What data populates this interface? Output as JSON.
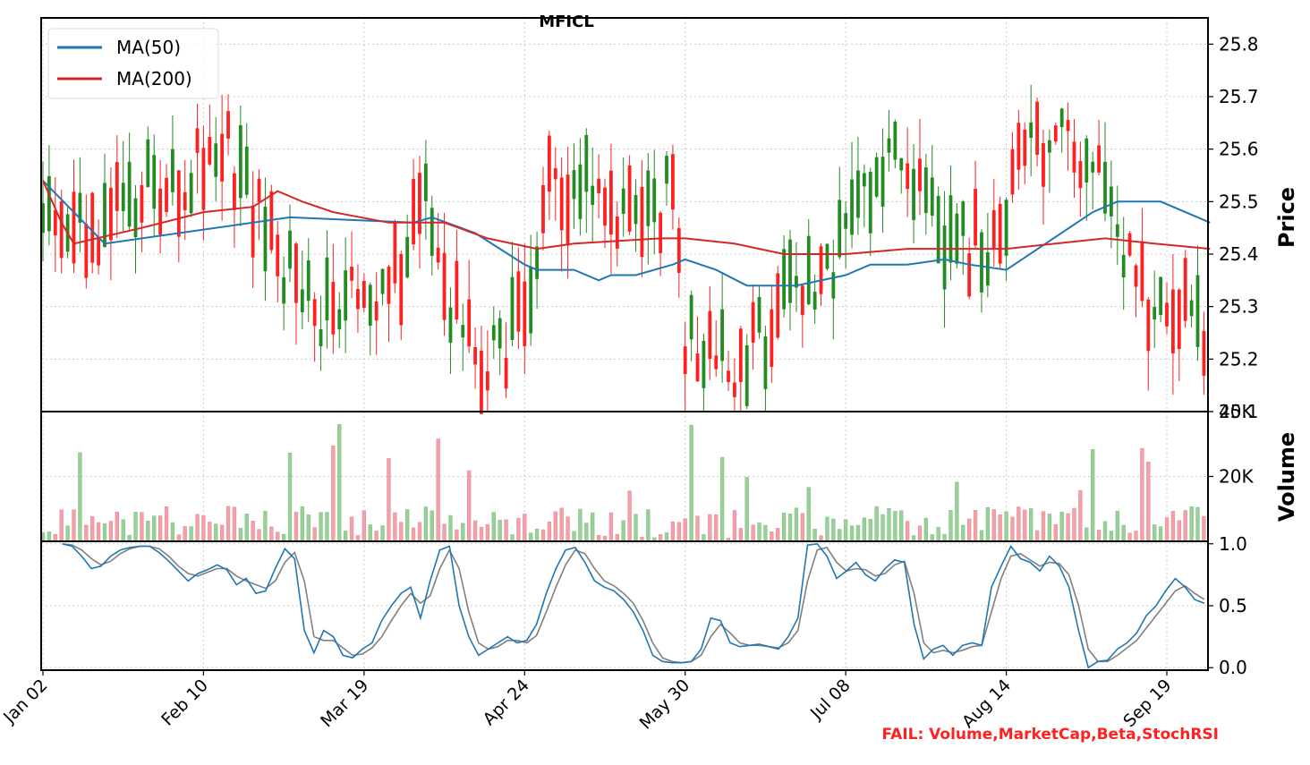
{
  "chart_data": {
    "type": "candlestick",
    "title": "MFICL",
    "x_tick_labels": [
      "Jan 02",
      "Feb 10",
      "Mar 19",
      "Apr 24",
      "May 30",
      "Jul 08",
      "Aug 14",
      "Sep 19"
    ],
    "x_tick_index": [
      0,
      26,
      52,
      78,
      104,
      130,
      156,
      182
    ],
    "bar_count": 189,
    "price_panel": {
      "ylabel": "Price",
      "ylim": [
        25.1,
        25.85
      ],
      "yticks": [
        "25.1",
        "25.2",
        "25.3",
        "25.4",
        "25.5",
        "25.6",
        "25.7",
        "25.8"
      ],
      "ytick_values": [
        25.1,
        25.2,
        25.3,
        25.4,
        25.5,
        25.6,
        25.7,
        25.8
      ],
      "legend": [
        {
          "name": "MA(50)",
          "color": "#1f77b4"
        },
        {
          "name": "MA(200)",
          "color": "#d62728"
        }
      ],
      "legend_position": "upper-left",
      "ma50": [
        [
          0,
          25.54
        ],
        [
          10,
          25.42
        ],
        [
          40,
          25.47
        ],
        [
          60,
          25.46
        ],
        [
          63,
          25.47
        ],
        [
          70,
          25.44
        ],
        [
          78,
          25.38
        ],
        [
          80,
          25.37
        ],
        [
          86,
          25.37
        ],
        [
          90,
          25.35
        ],
        [
          92,
          25.36
        ],
        [
          96,
          25.36
        ],
        [
          102,
          25.38
        ],
        [
          104,
          25.39
        ],
        [
          109,
          25.37
        ],
        [
          114,
          25.34
        ],
        [
          122,
          25.34
        ],
        [
          130,
          25.36
        ],
        [
          134,
          25.38
        ],
        [
          140,
          25.38
        ],
        [
          146,
          25.39
        ],
        [
          150,
          25.38
        ],
        [
          156,
          25.37
        ],
        [
          170,
          25.48
        ],
        [
          174,
          25.5
        ],
        [
          181,
          25.5
        ],
        [
          189,
          25.46
        ]
      ],
      "ma200": [
        [
          0,
          25.54
        ],
        [
          3,
          25.46
        ],
        [
          5,
          25.42
        ],
        [
          16,
          25.45
        ],
        [
          26,
          25.48
        ],
        [
          34,
          25.49
        ],
        [
          38,
          25.52
        ],
        [
          42,
          25.5
        ],
        [
          47,
          25.48
        ],
        [
          56,
          25.46
        ],
        [
          65,
          25.46
        ],
        [
          72,
          25.43
        ],
        [
          80,
          25.41
        ],
        [
          86,
          25.42
        ],
        [
          100,
          25.43
        ],
        [
          104,
          25.43
        ],
        [
          112,
          25.42
        ],
        [
          120,
          25.4
        ],
        [
          130,
          25.4
        ],
        [
          140,
          25.41
        ],
        [
          156,
          25.41
        ],
        [
          172,
          25.43
        ],
        [
          180,
          25.42
        ],
        [
          189,
          25.41
        ]
      ]
    },
    "volume_panel": {
      "ylabel": "Volume",
      "ylim": [
        0,
        40000
      ],
      "yticks": [
        "20K",
        "40K"
      ],
      "ytick_values": [
        20000,
        40000
      ]
    },
    "stochrsi_panel": {
      "ylim": [
        -0.02,
        1.02
      ],
      "yticks": [
        "0.0",
        "0.5",
        "1.0"
      ],
      "ytick_values": [
        0.0,
        0.5,
        1.0
      ],
      "k_color": "#1f77b4",
      "d_color": "#808080",
      "k": [
        [
          4,
          1.0
        ],
        [
          6,
          0.98
        ],
        [
          8,
          0.9
        ],
        [
          9,
          0.85
        ],
        [
          10,
          0.8
        ],
        [
          12,
          0.82
        ],
        [
          14,
          0.9
        ],
        [
          16,
          0.95
        ],
        [
          18,
          0.97
        ],
        [
          20,
          0.98
        ],
        [
          22,
          0.98
        ],
        [
          24,
          0.93
        ],
        [
          26,
          0.86
        ],
        [
          28,
          0.78
        ],
        [
          30,
          0.7
        ],
        [
          32,
          0.76
        ],
        [
          34,
          0.79
        ],
        [
          36,
          0.83
        ],
        [
          38,
          0.79
        ],
        [
          40,
          0.67
        ],
        [
          42,
          0.72
        ],
        [
          44,
          0.6
        ],
        [
          46,
          0.62
        ],
        [
          48,
          0.8
        ],
        [
          50,
          0.96
        ],
        [
          52,
          0.88
        ],
        [
          54,
          0.3
        ],
        [
          56,
          0.12
        ],
        [
          58,
          0.3
        ],
        [
          60,
          0.25
        ],
        [
          62,
          0.1
        ],
        [
          64,
          0.08
        ],
        [
          66,
          0.15
        ],
        [
          68,
          0.2
        ],
        [
          70,
          0.38
        ],
        [
          72,
          0.5
        ],
        [
          74,
          0.6
        ],
        [
          76,
          0.65
        ],
        [
          78,
          0.4
        ],
        [
          80,
          0.7
        ],
        [
          82,
          0.95
        ],
        [
          84,
          0.98
        ],
        [
          86,
          0.5
        ],
        [
          88,
          0.25
        ],
        [
          90,
          0.1
        ],
        [
          92,
          0.15
        ],
        [
          94,
          0.2
        ],
        [
          96,
          0.25
        ],
        [
          98,
          0.2
        ],
        [
          100,
          0.22
        ],
        [
          102,
          0.35
        ],
        [
          104,
          0.6
        ],
        [
          106,
          0.8
        ],
        [
          108,
          0.95
        ],
        [
          110,
          0.97
        ],
        [
          112,
          0.85
        ],
        [
          114,
          0.7
        ],
        [
          116,
          0.65
        ],
        [
          118,
          0.62
        ],
        [
          120,
          0.55
        ],
        [
          122,
          0.45
        ],
        [
          124,
          0.3
        ],
        [
          126,
          0.1
        ],
        [
          128,
          0.05
        ],
        [
          130,
          0.04
        ],
        [
          132,
          0.04
        ],
        [
          134,
          0.05
        ],
        [
          136,
          0.15
        ],
        [
          138,
          0.4
        ],
        [
          140,
          0.38
        ],
        [
          142,
          0.2
        ],
        [
          144,
          0.17
        ],
        [
          146,
          0.18
        ],
        [
          148,
          0.19
        ],
        [
          150,
          0.17
        ],
        [
          152,
          0.15
        ],
        [
          154,
          0.25
        ],
        [
          156,
          0.4
        ],
        [
          158,
          0.99
        ],
        [
          160,
          1.0
        ],
        [
          162,
          0.9
        ],
        [
          164,
          0.72
        ],
        [
          166,
          0.78
        ],
        [
          168,
          0.85
        ],
        [
          170,
          0.75
        ],
        [
          172,
          0.7
        ],
        [
          174,
          0.8
        ],
        [
          176,
          0.87
        ],
        [
          178,
          0.85
        ],
        [
          180,
          0.35
        ],
        [
          182,
          0.07
        ],
        [
          184,
          0.15
        ],
        [
          186,
          0.18
        ],
        [
          188,
          0.1
        ],
        [
          190,
          0.18
        ],
        [
          192,
          0.2
        ],
        [
          194,
          0.18
        ],
        [
          196,
          0.65
        ],
        [
          198,
          0.82
        ],
        [
          200,
          0.98
        ],
        [
          202,
          0.88
        ],
        [
          204,
          0.85
        ],
        [
          206,
          0.78
        ],
        [
          208,
          0.9
        ],
        [
          210,
          0.82
        ],
        [
          212,
          0.65
        ],
        [
          214,
          0.3
        ],
        [
          216,
          0.0
        ],
        [
          218,
          0.05
        ],
        [
          220,
          0.06
        ],
        [
          222,
          0.15
        ],
        [
          224,
          0.2
        ],
        [
          226,
          0.28
        ],
        [
          228,
          0.42
        ],
        [
          230,
          0.5
        ],
        [
          232,
          0.62
        ],
        [
          234,
          0.72
        ],
        [
          236,
          0.65
        ],
        [
          238,
          0.55
        ],
        [
          240,
          0.52
        ]
      ],
      "d": [
        [
          4,
          1.0
        ],
        [
          6,
          0.99
        ],
        [
          8,
          0.95
        ],
        [
          10,
          0.88
        ],
        [
          12,
          0.83
        ],
        [
          14,
          0.86
        ],
        [
          16,
          0.92
        ],
        [
          18,
          0.96
        ],
        [
          20,
          0.98
        ],
        [
          22,
          0.98
        ],
        [
          24,
          0.96
        ],
        [
          26,
          0.9
        ],
        [
          28,
          0.82
        ],
        [
          30,
          0.76
        ],
        [
          32,
          0.74
        ],
        [
          34,
          0.77
        ],
        [
          36,
          0.8
        ],
        [
          38,
          0.8
        ],
        [
          40,
          0.74
        ],
        [
          42,
          0.7
        ],
        [
          44,
          0.67
        ],
        [
          46,
          0.64
        ],
        [
          48,
          0.7
        ],
        [
          50,
          0.85
        ],
        [
          52,
          0.93
        ],
        [
          54,
          0.7
        ],
        [
          56,
          0.25
        ],
        [
          58,
          0.22
        ],
        [
          60,
          0.22
        ],
        [
          62,
          0.16
        ],
        [
          64,
          0.1
        ],
        [
          66,
          0.11
        ],
        [
          68,
          0.16
        ],
        [
          70,
          0.25
        ],
        [
          72,
          0.38
        ],
        [
          74,
          0.5
        ],
        [
          76,
          0.6
        ],
        [
          78,
          0.52
        ],
        [
          80,
          0.58
        ],
        [
          82,
          0.8
        ],
        [
          84,
          0.95
        ],
        [
          86,
          0.8
        ],
        [
          88,
          0.45
        ],
        [
          90,
          0.2
        ],
        [
          92,
          0.15
        ],
        [
          94,
          0.17
        ],
        [
          96,
          0.22
        ],
        [
          98,
          0.22
        ],
        [
          100,
          0.2
        ],
        [
          102,
          0.26
        ],
        [
          104,
          0.45
        ],
        [
          106,
          0.65
        ],
        [
          108,
          0.83
        ],
        [
          110,
          0.95
        ],
        [
          112,
          0.92
        ],
        [
          114,
          0.8
        ],
        [
          116,
          0.7
        ],
        [
          118,
          0.66
        ],
        [
          120,
          0.6
        ],
        [
          122,
          0.52
        ],
        [
          124,
          0.38
        ],
        [
          126,
          0.2
        ],
        [
          128,
          0.08
        ],
        [
          130,
          0.05
        ],
        [
          132,
          0.04
        ],
        [
          134,
          0.05
        ],
        [
          136,
          0.1
        ],
        [
          138,
          0.25
        ],
        [
          140,
          0.35
        ],
        [
          142,
          0.28
        ],
        [
          144,
          0.2
        ],
        [
          146,
          0.18
        ],
        [
          148,
          0.18
        ],
        [
          150,
          0.17
        ],
        [
          152,
          0.16
        ],
        [
          154,
          0.2
        ],
        [
          156,
          0.3
        ],
        [
          158,
          0.7
        ],
        [
          160,
          0.95
        ],
        [
          162,
          0.97
        ],
        [
          164,
          0.85
        ],
        [
          166,
          0.78
        ],
        [
          168,
          0.8
        ],
        [
          170,
          0.79
        ],
        [
          172,
          0.74
        ],
        [
          174,
          0.76
        ],
        [
          176,
          0.83
        ],
        [
          178,
          0.86
        ],
        [
          180,
          0.6
        ],
        [
          182,
          0.2
        ],
        [
          184,
          0.12
        ],
        [
          186,
          0.14
        ],
        [
          188,
          0.12
        ],
        [
          190,
          0.14
        ],
        [
          192,
          0.17
        ],
        [
          194,
          0.18
        ],
        [
          196,
          0.45
        ],
        [
          198,
          0.72
        ],
        [
          200,
          0.9
        ],
        [
          202,
          0.92
        ],
        [
          204,
          0.87
        ],
        [
          206,
          0.82
        ],
        [
          208,
          0.85
        ],
        [
          210,
          0.84
        ],
        [
          212,
          0.75
        ],
        [
          214,
          0.5
        ],
        [
          216,
          0.15
        ],
        [
          218,
          0.05
        ],
        [
          220,
          0.05
        ],
        [
          222,
          0.1
        ],
        [
          224,
          0.16
        ],
        [
          226,
          0.22
        ],
        [
          228,
          0.32
        ],
        [
          230,
          0.42
        ],
        [
          232,
          0.52
        ],
        [
          234,
          0.62
        ],
        [
          236,
          0.66
        ],
        [
          238,
          0.6
        ],
        [
          240,
          0.55
        ]
      ]
    },
    "annotation": "FAIL: Volume,MarketCap,Beta,StochRSI"
  }
}
